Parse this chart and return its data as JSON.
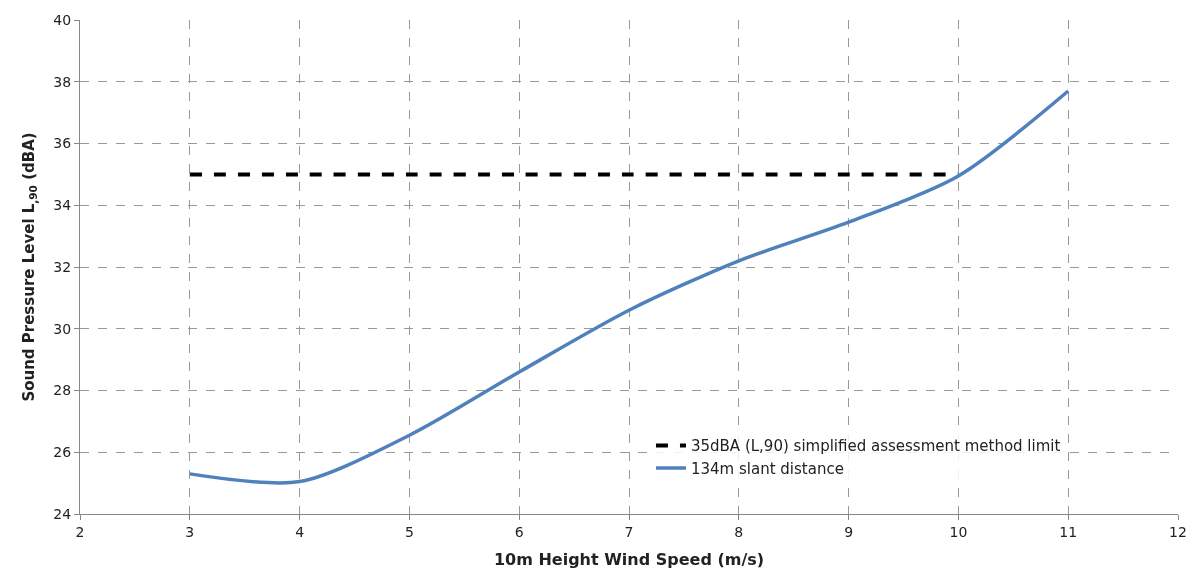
{
  "chart_data": {
    "type": "line",
    "xlabel": "10m Height Wind Speed (m/s)",
    "ylabel": "Sound Pressure Level L$_{,90}$ (dBA)",
    "series": [
      {
        "name": "35dBA (L,90) simplified assessment method limit",
        "color": "#000000",
        "line_style": "dashed",
        "x": [
          3,
          4,
          5,
          6,
          7,
          8,
          9,
          10
        ],
        "values": [
          35,
          35,
          35,
          35,
          35,
          35,
          35,
          35
        ]
      },
      {
        "name": "134m slant distance",
        "color": "#4f81bd",
        "line_style": "solid",
        "x": [
          3,
          4,
          5,
          6,
          7,
          8,
          9,
          10,
          11
        ],
        "values": [
          25.3,
          25.05,
          26.55,
          28.6,
          30.6,
          32.2,
          33.45,
          34.95,
          37.7
        ]
      }
    ],
    "xlim": [
      2,
      12
    ],
    "xticks": [
      2,
      3,
      4,
      5,
      6,
      7,
      8,
      9,
      10,
      11,
      12
    ],
    "ylim": [
      24,
      40
    ],
    "yticks": [
      24,
      26,
      28,
      30,
      32,
      34,
      36,
      38,
      40
    ],
    "grid": true,
    "legend": "bottom right",
    "marker": "none"
  }
}
